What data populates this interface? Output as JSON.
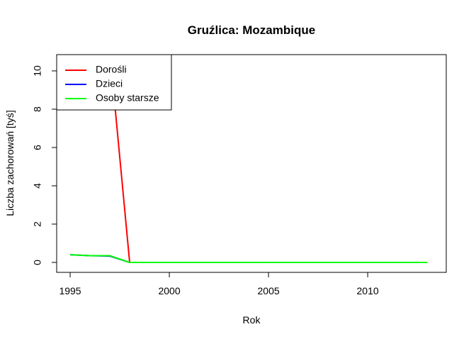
{
  "chart_data": {
    "type": "line",
    "title": "Gruźlica: Mozambique",
    "x_label": "Rok",
    "y_label": "Liczba zachorowań [tyś]",
    "x": [
      1995,
      1996,
      1997,
      1998,
      1999,
      2000,
      2001,
      2002,
      2003,
      2004,
      2005,
      2006,
      2007,
      2008,
      2009,
      2010,
      2011,
      2012,
      2013
    ],
    "series": [
      {
        "name": "Dorośli",
        "color": "#ff0000",
        "values": [
          11,
          11,
          11,
          0,
          0,
          0,
          0,
          0,
          0,
          0,
          0,
          0,
          0,
          0,
          0,
          0,
          0,
          0,
          0
        ]
      },
      {
        "name": "Dzieci",
        "color": "#0000ff",
        "values": [
          0.4,
          0.35,
          0.33,
          0,
          0,
          0,
          0,
          0,
          0,
          0,
          0,
          0,
          0,
          0,
          0,
          0,
          0,
          0,
          0
        ]
      },
      {
        "name": "Osoby starsze",
        "color": "#00ff00",
        "values": [
          0.4,
          0.35,
          0.35,
          0,
          0,
          0,
          0,
          0,
          0,
          0,
          0,
          0,
          0,
          0,
          0,
          0,
          0,
          0,
          0
        ]
      }
    ],
    "xlim": [
      1994.32,
      2013.96
    ],
    "ylim": [
      -0.52,
      10.85
    ],
    "xticks": [
      1995,
      2000,
      2005,
      2010
    ],
    "yticks": [
      0,
      2,
      4,
      6,
      8,
      10
    ],
    "legend": "top-left"
  }
}
